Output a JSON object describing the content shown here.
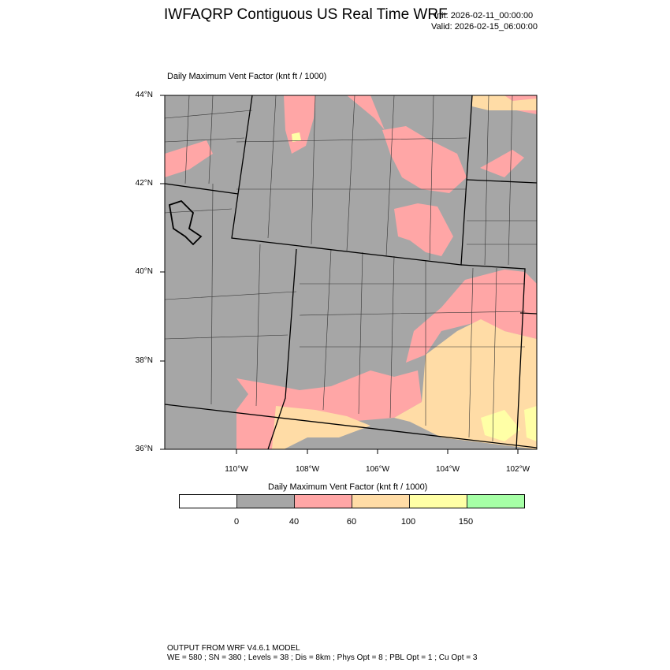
{
  "header": {
    "title": "IWFAQRP Contiguous US Real Time WRF",
    "init": "Init: 2026-02-11_00:00:00",
    "valid": "Valid: 2026-02-15_06:00:00"
  },
  "map": {
    "subtitle": "Daily Maximum Vent Factor   (knt ft / 1000)",
    "lat_labels": [
      "44°N",
      "42°N",
      "40°N",
      "38°N",
      "36°N"
    ],
    "lon_labels": [
      "110°W",
      "108°W",
      "106°W",
      "104°W",
      "102°W"
    ],
    "colors": {
      "below0": "#ffffff",
      "0-40": "#a6a6a6",
      "40-60": "#ffa6a6",
      "60-100": "#ffdca6",
      "100-150": "#ffffa6",
      "150+": "#a6ffa6"
    }
  },
  "colorbar": {
    "title": "Daily Maximum Vent Factor  (knt ft / 1000)",
    "labels": [
      "0",
      "40",
      "60",
      "100",
      "150"
    ],
    "colors": [
      "#ffffff",
      "#a6a6a6",
      "#ffa6a6",
      "#ffdca6",
      "#ffffa6",
      "#a6ffa6"
    ]
  },
  "footer": {
    "line1": "OUTPUT FROM WRF V4.6.1 MODEL",
    "line2": "WE = 580 ; SN = 380 ; Levels = 38 ; Dis = 8km ; Phys Opt = 8 ; PBL Opt = 1 ; Cu Opt = 3"
  }
}
